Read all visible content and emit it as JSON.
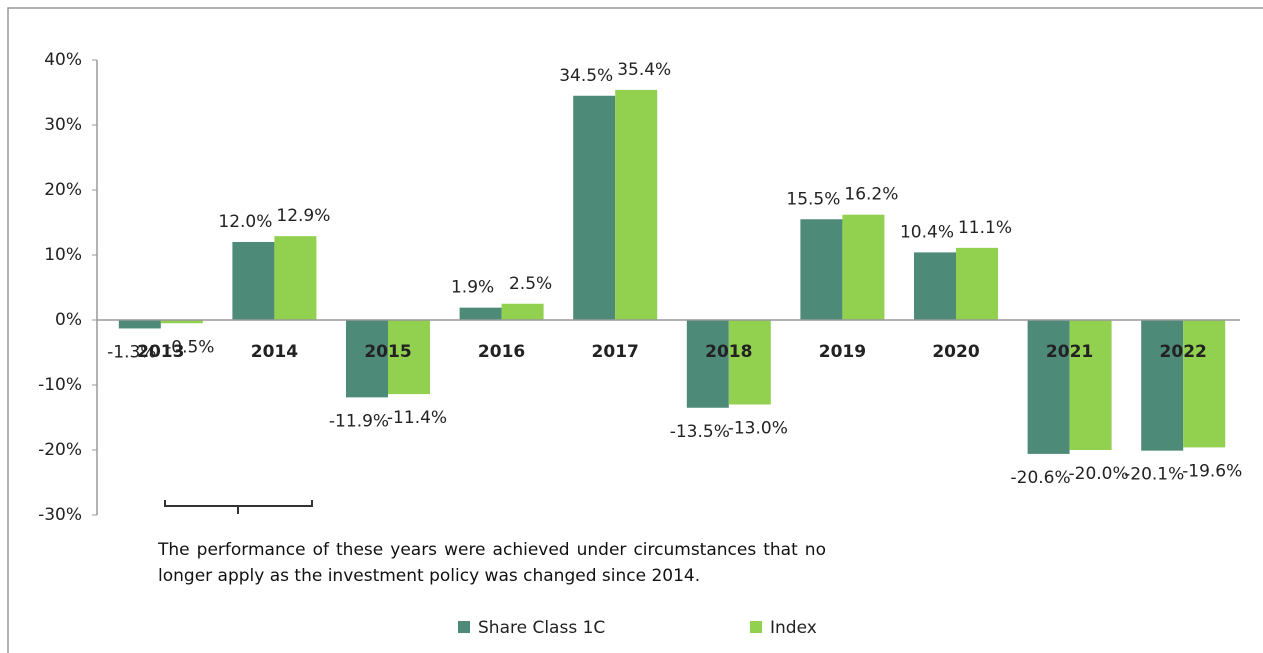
{
  "chart_data": {
    "type": "bar",
    "categories": [
      "2013",
      "2014",
      "2015",
      "2016",
      "2017",
      "2018",
      "2019",
      "2020",
      "2021",
      "2022"
    ],
    "series": [
      {
        "name": "Share Class 1C",
        "color": "#4e8a78",
        "values": [
          -1.3,
          12.0,
          -11.9,
          1.9,
          34.5,
          -13.5,
          15.5,
          10.4,
          -20.6,
          -20.1
        ],
        "value_labels": [
          "-1.3%",
          "12.0%",
          "-11.9%",
          "1.9%",
          "34.5%",
          "-13.5%",
          "15.5%",
          "10.4%",
          "-20.6%",
          "-20.1%"
        ]
      },
      {
        "name": "Index",
        "color": "#92d050",
        "values": [
          -0.5,
          12.9,
          -11.4,
          2.5,
          35.4,
          -13.0,
          16.2,
          11.1,
          -20.0,
          -19.6
        ],
        "value_labels": [
          "-0.5%",
          "12.9%",
          "-11.4%",
          "2.5%",
          "35.4%",
          "-13.0%",
          "16.2%",
          "11.1%",
          "-20.0%",
          "-19.6%"
        ]
      }
    ],
    "ylim": [
      -30,
      40
    ],
    "yticks": [
      {
        "value": -30,
        "label": "-30%"
      },
      {
        "value": -20,
        "label": "-20%"
      },
      {
        "value": -10,
        "label": "-10%"
      },
      {
        "value": 0,
        "label": "0%"
      },
      {
        "value": 10,
        "label": "10%"
      },
      {
        "value": 20,
        "label": "20%"
      },
      {
        "value": 30,
        "label": "30%"
      },
      {
        "value": 40,
        "label": "40%"
      }
    ],
    "annotation": "The performance of these years were achieved under circumstances that no longer apply as the investment policy was changed since 2014.",
    "legend": "bottom"
  }
}
